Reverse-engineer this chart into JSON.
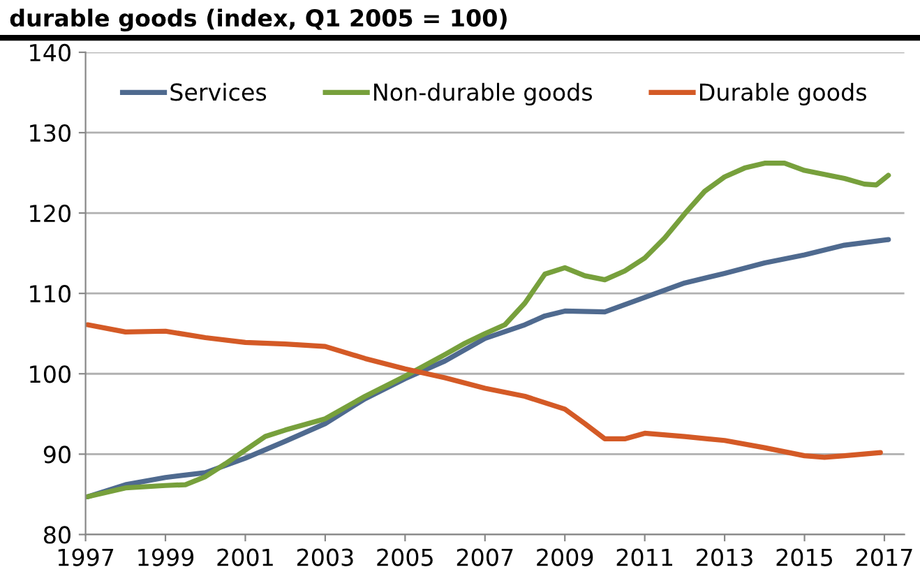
{
  "chart_data": {
    "type": "line",
    "title": "durable goods (index, Q1 2005 = 100)",
    "xlim": [
      1997,
      2017.5
    ],
    "xticks": [
      1997,
      1999,
      2001,
      2003,
      2005,
      2007,
      2009,
      2011,
      2013,
      2015,
      2017
    ],
    "ylim": [
      80,
      140
    ],
    "yticks": [
      80,
      90,
      100,
      110,
      120,
      130,
      140
    ],
    "grid": "y",
    "legend": "top",
    "marker": "none",
    "line_style": "solid",
    "series": [
      {
        "name": "Services",
        "color": "#4f6a8f",
        "x": [
          1997.05,
          1998,
          1999,
          2000,
          2001,
          2002,
          2003,
          2004,
          2005,
          2006,
          2007,
          2008,
          2008.5,
          2009,
          2010,
          2011,
          2012,
          2013,
          2014,
          2015,
          2016,
          2017.1
        ],
        "values": [
          84.7,
          86.2,
          87.1,
          87.7,
          89.5,
          91.6,
          93.8,
          96.9,
          99.4,
          101.6,
          104.4,
          106.1,
          107.2,
          107.8,
          107.7,
          109.5,
          111.3,
          112.5,
          113.8,
          114.8,
          116,
          116.7
        ]
      },
      {
        "name": "Non-durable goods",
        "color": "#77a03c",
        "x": [
          1997.05,
          1998,
          1999,
          1999.5,
          2000,
          2000.5,
          2001,
          2001.5,
          2002,
          2003,
          2004,
          2005,
          2006,
          2006.5,
          2007,
          2007.5,
          2008,
          2008.5,
          2009,
          2009.5,
          2010,
          2010.5,
          2011,
          2011.5,
          2012,
          2012.5,
          2013,
          2013.5,
          2014,
          2014.5,
          2015,
          2015.5,
          2016,
          2016.5,
          2016.8,
          2017.1
        ],
        "values": [
          84.7,
          85.8,
          86.1,
          86.2,
          87.2,
          88.8,
          90.5,
          92.2,
          93,
          94.4,
          97.2,
          99.7,
          102.4,
          103.8,
          105,
          106.1,
          108.8,
          112.4,
          113.2,
          112.2,
          111.7,
          112.8,
          114.4,
          116.9,
          119.9,
          122.7,
          124.5,
          125.6,
          126.2,
          126.2,
          125.3,
          124.8,
          124.3,
          123.6,
          123.5,
          124.7
        ]
      },
      {
        "name": "Durable goods",
        "color": "#d45a26",
        "x": [
          1997.05,
          1998,
          1999,
          2000,
          2001,
          2002,
          2003,
          2004,
          2005,
          2006,
          2007,
          2008,
          2009,
          2009.5,
          2010,
          2010.5,
          2011,
          2012,
          2013,
          2014,
          2015,
          2015.5,
          2016,
          2016.9
        ],
        "values": [
          106.1,
          105.2,
          105.3,
          104.5,
          103.9,
          103.7,
          103.4,
          101.9,
          100.6,
          99.5,
          98.2,
          97.2,
          95.6,
          93.8,
          91.9,
          91.9,
          92.6,
          92.2,
          91.7,
          90.8,
          89.8,
          89.6,
          89.8,
          90.2
        ]
      }
    ]
  }
}
